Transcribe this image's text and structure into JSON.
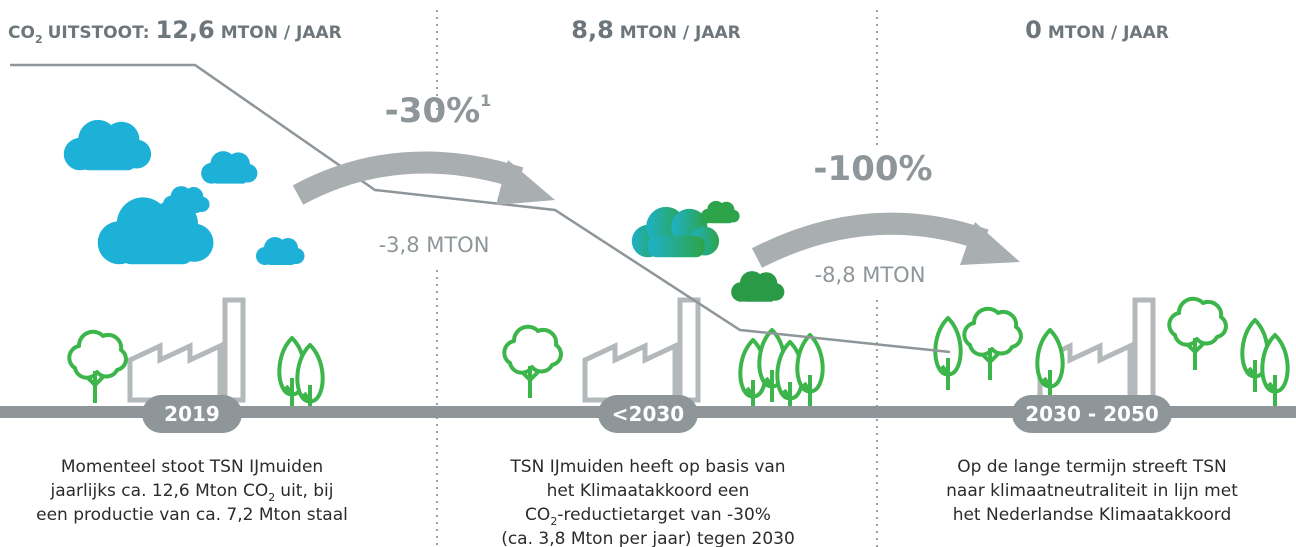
{
  "columns": [
    {
      "header": {
        "prefix": "CO",
        "sub": "2",
        "label": "UITSTOOT:",
        "value": "12,6",
        "unit": "MTON / JAAR"
      },
      "year": "2019",
      "description": [
        {
          "before": "Momenteel stoot TSN IJmuiden"
        },
        {
          "before": "jaarlijks ca. 12,6 Mton CO",
          "sub": "2",
          "after": "uit, bij"
        },
        {
          "before": "een productie van ca. 7,2 Mton staal"
        }
      ]
    },
    {
      "header": {
        "value": "8,8",
        "unit": "MTON / JAAR"
      },
      "year": "<2030",
      "description": [
        {
          "before": "TSN IJmuiden heeft op basis van"
        },
        {
          "before": "het Klimaatakkoord een"
        },
        {
          "before": "CO",
          "sub": "2",
          "after": "-reductietarget van -30%"
        },
        {
          "before": "(ca. 3,8 Mton per jaar) tegen 2030"
        }
      ]
    },
    {
      "header": {
        "value": "0",
        "unit": "MTON / JAAR"
      },
      "year": "2030 - 2050",
      "description": [
        {
          "before": "Op de lange termijn streeft TSN"
        },
        {
          "before": "naar klimaatneutraliteit in lijn met"
        },
        {
          "before": "het Nederlandse Klimaatakkoord"
        }
      ]
    }
  ],
  "transitions": [
    {
      "percent": "-30%",
      "footnote": "1",
      "reduction": "-3,8 MTON"
    },
    {
      "percent": "-100%",
      "reduction": "-8,8 MTON"
    }
  ]
}
